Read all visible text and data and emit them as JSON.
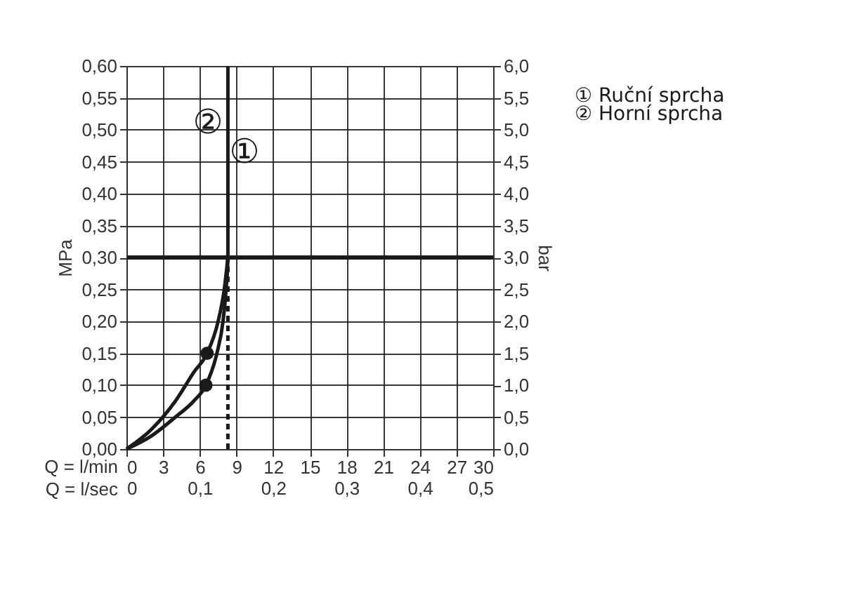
{
  "chart_data": {
    "type": "line",
    "xlabel": "Q = l/min",
    "x2label": "Q = l/sec",
    "ylabel": "MPa",
    "y2label": "bar",
    "xlim": [
      0,
      30
    ],
    "xticks": [
      0,
      3,
      6,
      9,
      12,
      15,
      18,
      21,
      24,
      27,
      30
    ],
    "x2lim": [
      0,
      0.5
    ],
    "x2ticks": [
      {
        "value": 0,
        "label": "0"
      },
      {
        "value": 0.1,
        "label": "0,1"
      },
      {
        "value": 0.2,
        "label": "0,2"
      },
      {
        "value": 0.3,
        "label": "0,3"
      },
      {
        "value": 0.4,
        "label": "0,4"
      },
      {
        "value": 0.5,
        "label": "0,5"
      }
    ],
    "ylim": [
      0,
      0.6
    ],
    "yticks": [
      {
        "value": 0,
        "label": "0,00"
      },
      {
        "value": 0.05,
        "label": "0,05"
      },
      {
        "value": 0.1,
        "label": "0,10"
      },
      {
        "value": 0.15,
        "label": "0,15"
      },
      {
        "value": 0.2,
        "label": "0,20"
      },
      {
        "value": 0.25,
        "label": "0,25"
      },
      {
        "value": 0.3,
        "label": "0,30"
      },
      {
        "value": 0.35,
        "label": "0,35"
      },
      {
        "value": 0.4,
        "label": "0,40"
      },
      {
        "value": 0.45,
        "label": "0,45"
      },
      {
        "value": 0.5,
        "label": "0,50"
      },
      {
        "value": 0.55,
        "label": "0,55"
      },
      {
        "value": 0.6,
        "label": "0,60"
      }
    ],
    "y2lim": [
      0,
      6
    ],
    "y2ticks": [
      {
        "value": 0,
        "label": "0,0"
      },
      {
        "value": 0.5,
        "label": "0,5"
      },
      {
        "value": 1,
        "label": "1,0"
      },
      {
        "value": 1.5,
        "label": "1,5"
      },
      {
        "value": 2,
        "label": "2,0"
      },
      {
        "value": 2.5,
        "label": "2,5"
      },
      {
        "value": 3,
        "label": "3,0"
      },
      {
        "value": 3.5,
        "label": "3,5"
      },
      {
        "value": 4,
        "label": "4,0"
      },
      {
        "value": 4.5,
        "label": "4,5"
      },
      {
        "value": 5,
        "label": "5,0"
      },
      {
        "value": 5.5,
        "label": "5,5"
      },
      {
        "value": 6,
        "label": "6,0"
      }
    ],
    "grid": true,
    "legend": "right",
    "line_style": "solid",
    "ref_lines": [
      {
        "axis": "y",
        "value": 0.3,
        "color": "#1a1a1a"
      }
    ],
    "annotations": [
      "①",
      "②"
    ],
    "series": [
      {
        "name": "① Ruční sprcha",
        "color": "#1a1a1a",
        "x": [
          0,
          2,
          4,
          5.5,
          6.5,
          7.4,
          7.9,
          8.15,
          8.3,
          8.3
        ],
        "values": [
          0,
          0.02,
          0.05,
          0.075,
          0.1,
          0.15,
          0.2,
          0.25,
          0.3,
          0.6
        ]
      },
      {
        "name": "② Horní sprcha",
        "color": "#1a1a1a",
        "x": [
          0,
          2,
          4,
          5.5,
          6.6,
          7.5,
          8.0,
          8.3
        ],
        "values": [
          0,
          0.03,
          0.075,
          0.12,
          0.15,
          0.2,
          0.25,
          0.3
        ]
      },
      {
        "type": "line",
        "line_style": "dashed",
        "color": "#1a1a1a",
        "x": [
          8.3,
          8.3
        ],
        "values": [
          0,
          0.3
        ]
      },
      {
        "type": "scatter",
        "marker": "circle",
        "color": "#1a1a1a",
        "x": [
          6.5
        ],
        "values": [
          0.1
        ]
      },
      {
        "type": "scatter",
        "marker": "circle",
        "color": "#1a1a1a",
        "x": [
          6.6
        ],
        "values": [
          0.15
        ]
      }
    ]
  }
}
